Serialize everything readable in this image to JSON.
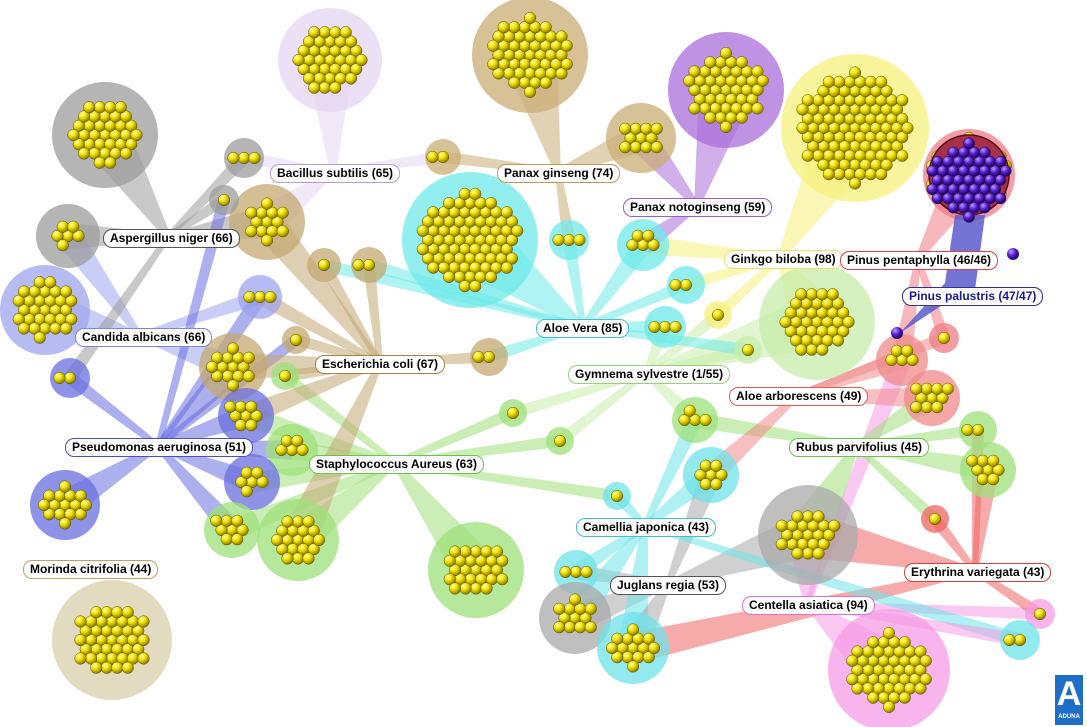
{
  "labels": {
    "bacillus": "Bacillus subtilis (65)",
    "panax_ginseng": "Panax ginseng (74)",
    "panax_noto": "Panax notoginseng (59)",
    "aspergillus": "Aspergillus niger (66)",
    "ginkgo": "Ginkgo biloba (98)",
    "pinus_penta": "Pinus pentaphylla (46/46)",
    "pinus_palu": "Pinus palustris (47/47)",
    "aloe_vera": "Aloe Vera (85)",
    "candida": "Candida albicans (66)",
    "ecoli": "Escherichia coli (67)",
    "gymnema": "Gymnema sylvestre (1/55)",
    "aloe_arbo": "Aloe arborescens (49)",
    "pseudomonas": "Pseudomonas aeruginosa (51)",
    "rubus": "Rubus parvifolius (45)",
    "staph": "Staphylococcus Aureus (63)",
    "camellia": "Camellia japonica (43)",
    "morinda": "Morinda citrifolia (44)",
    "juglans": "Juglans regia (53)",
    "erythrina": "Erythrina variegata (43)",
    "centella": "Centella asiatica (94)"
  },
  "logo": {
    "letter": "A",
    "text": "ADUNA"
  },
  "colors": {
    "node": "#f2e200",
    "node_dark": "#8a7b00",
    "node_selected": "#5a1fd0",
    "bacillus": "#e6d6f3",
    "panax_ginseng": "#c9ad75",
    "panax_noto": "#a96ed9",
    "aspergillus": "#9c9c9c",
    "ginkgo": "#f6f07a",
    "pinus_penta": "#ee7b86",
    "pinus_palu": "#5c5ccc",
    "aloe_vera": "#6feaea",
    "candida": "#9ea4ec",
    "ecoli": "#c4a873",
    "gymnema": "#c6ecaa",
    "aloe_arbo": "#f08a8a",
    "pseudomonas": "#6a6fe0",
    "rubus": "#9ee07a",
    "staph": "#9ee07a",
    "camellia": "#6ee3ea",
    "morinda": "#d9cfa9",
    "juglans": "#a9a9a9",
    "erythrina": "#f06464",
    "centella": "#f59be6"
  }
}
